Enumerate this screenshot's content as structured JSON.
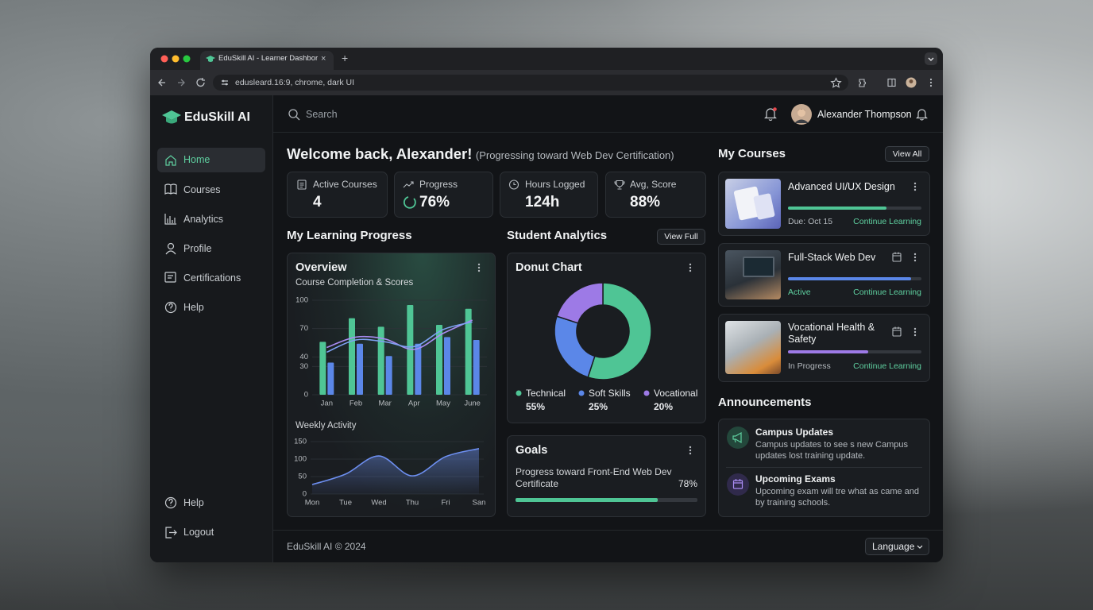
{
  "browser": {
    "tab_title": "EduSkill AI - Learner Dashbor",
    "url": "edusleard.16:9, chrome, dark UI"
  },
  "sidebar": {
    "brand": "EduSkill AI",
    "nav": [
      "Home",
      "Courses",
      "Analytics",
      "Profile",
      "Certifications",
      "Help"
    ],
    "bottom": [
      "Help",
      "Logout"
    ]
  },
  "header": {
    "search_placeholder": "Search",
    "user_name": "Alexander Thompson"
  },
  "welcome": {
    "title": "Welcome back, Alexander!",
    "subtitle": "(Progressing toward Web Dev Certification)"
  },
  "stats": [
    {
      "label": "Active Courses",
      "value": "4"
    },
    {
      "label": "Progress",
      "value": "76%"
    },
    {
      "label": "Hours Logged",
      "value": "124h"
    },
    {
      "label": "Avg, Score",
      "value": "88%"
    }
  ],
  "sections": {
    "learning_progress": "My Learning Progress",
    "student_analytics": "Student Analytics",
    "view_full": "View Full",
    "my_courses": "My Courses",
    "view_all": "View All",
    "announcements": "Announcements"
  },
  "chart_data": [
    {
      "type": "bar",
      "title": "Overview",
      "subtitle": "Course Completion & Scores",
      "categories": [
        "Jan",
        "Feb",
        "Mar",
        "Apr",
        "May",
        "June"
      ],
      "series": [
        {
          "color": "#4fc595",
          "values": [
            56,
            81,
            72,
            95,
            74,
            91
          ]
        },
        {
          "color": "#5b87e8",
          "values": [
            34,
            54,
            41,
            54,
            61,
            58
          ]
        },
        {
          "type": "line",
          "color": "#a98cf2",
          "values": [
            50,
            61,
            59,
            48,
            65,
            79
          ]
        },
        {
          "type": "line",
          "color": "#7ea2f2",
          "values": [
            45,
            58,
            56,
            51,
            69,
            77
          ]
        }
      ],
      "ylim": [
        0,
        100
      ],
      "yticks": [
        0,
        30,
        40,
        70,
        100
      ],
      "grid": true
    },
    {
      "type": "area",
      "title": "Weekly Activity",
      "categories": [
        "Mon",
        "Tue",
        "Wed",
        "Thu",
        "Fri",
        "San"
      ],
      "values": [
        27,
        57,
        109,
        52,
        107,
        130
      ],
      "color": "#6d8ff0",
      "ylim": [
        0,
        150
      ],
      "yticks": [
        0,
        50,
        100,
        150
      ],
      "grid": true
    },
    {
      "type": "pie",
      "title": "Donut Chart",
      "categories": [
        "Technical",
        "Soft Skills",
        "Vocational"
      ],
      "values": [
        55,
        25,
        20
      ],
      "value_labels": [
        "55%",
        "25%",
        "20%"
      ],
      "colors": [
        "#4fc595",
        "#5b87e8",
        "#9d7ae6"
      ]
    }
  ],
  "goals": {
    "title": "Goals",
    "text": "Progress toward Front-End Web Dev Certificate",
    "value": 78,
    "value_label": "78%",
    "color": "#4fc595"
  },
  "courses": [
    {
      "title": "Advanced UI/UX Design",
      "status": "Due: Oct 15",
      "action": "Continue Learning",
      "progress": 74,
      "color": "#4fc595"
    },
    {
      "title": "Full-Stack Web Dev",
      "status": "Active",
      "action": "Continue Learning",
      "progress": 92,
      "color": "#5b87e8"
    },
    {
      "title": "Vocational Health & Safety",
      "status": "In Progress",
      "action": "Continue Learning",
      "progress": 60,
      "color": "#9d7ae6"
    }
  ],
  "announcements": [
    {
      "title": "Campus Updates",
      "text": "Campus updates to see s new Campus updates lost training update."
    },
    {
      "title": "Upcoming Exams",
      "text": "Upcoming exam will tre what as came and by training schools."
    }
  ],
  "footer": {
    "copyright": "EduSkill AI © 2024",
    "language": "Language"
  }
}
